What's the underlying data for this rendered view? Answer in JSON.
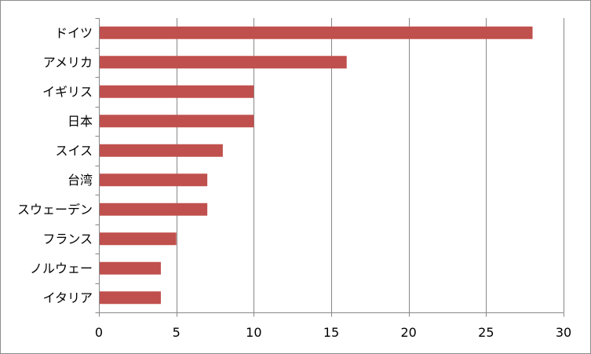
{
  "chart_data": {
    "type": "bar",
    "orientation": "horizontal",
    "categories": [
      "ドイツ",
      "アメリカ",
      "イギリス",
      "日本",
      "スイス",
      "台湾",
      "スウェーデン",
      "フランス",
      "ノルウェー",
      "イタリア"
    ],
    "values": [
      28,
      16,
      10,
      10,
      8,
      7,
      7,
      5,
      4,
      4
    ],
    "xlim": [
      0,
      30
    ],
    "xticks": [
      0,
      5,
      10,
      15,
      20,
      25,
      30
    ],
    "xtick_labels": [
      "0",
      "5",
      "10",
      "15",
      "20",
      "25",
      "30"
    ],
    "grid": "vertical",
    "legend": "none",
    "colors": {
      "bar": "#c0504d",
      "grid": "#878787",
      "axis": "#878787",
      "text": "#000000",
      "border": "#8c8c8c"
    }
  }
}
